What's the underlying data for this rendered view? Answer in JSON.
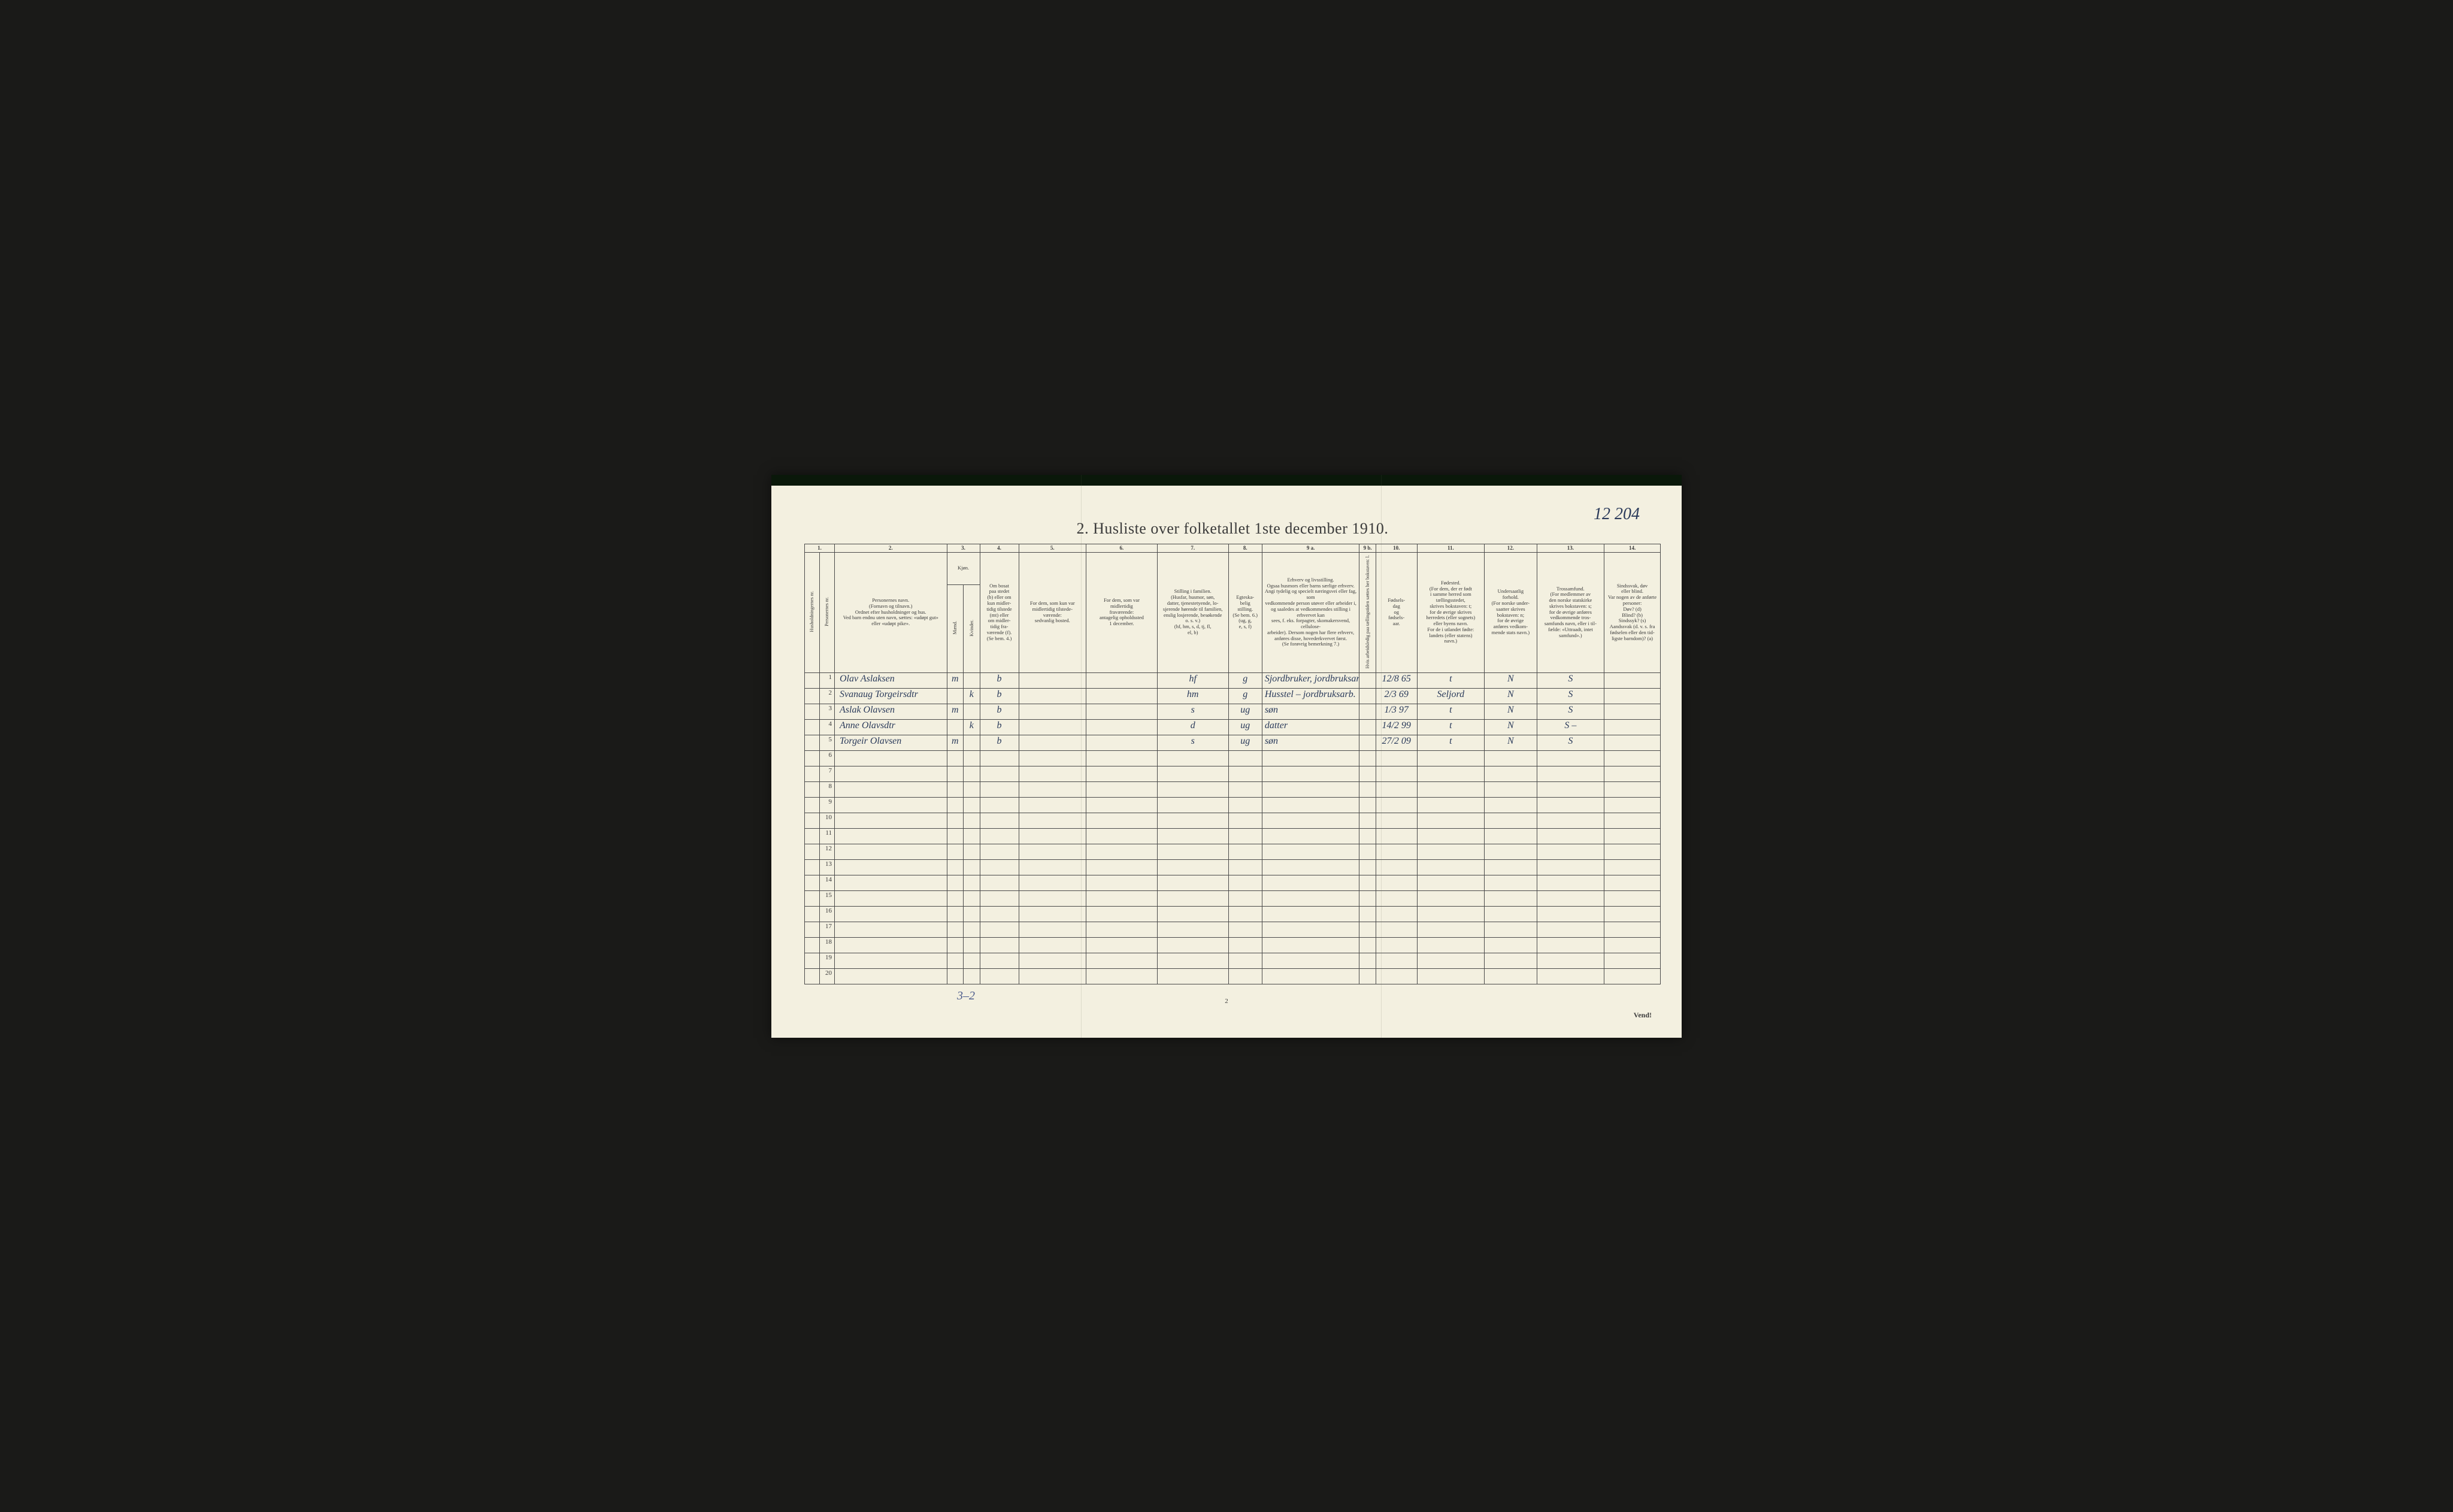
{
  "page": {
    "title": "2.  Husliste over folketallet 1ste december 1910.",
    "corner_note": "12 204",
    "bottom_note": "3–2",
    "page_number": "2",
    "vend": "Vend!",
    "background_color": "#f3f0e0",
    "ink_color": "#3a3a3a",
    "handwriting_color": "#2a3a5a",
    "border_color": "#4a4a4a"
  },
  "columns": {
    "widths_pct": [
      2.0,
      2.0,
      15.0,
      2.2,
      2.2,
      5.2,
      9.0,
      9.5,
      9.5,
      4.5,
      13.0,
      2.2,
      5.5,
      9.0,
      7.0,
      9.0,
      7.5
    ],
    "numbers": [
      "1.",
      "2.",
      "3.",
      "4.",
      "5.",
      "6.",
      "7.",
      "8.",
      "9 a.",
      "9 b.",
      "10.",
      "11.",
      "12.",
      "13.",
      "14."
    ],
    "header1_rot": "Husholdningernes nr.",
    "header1b_rot": "Personernes nr.",
    "header2": "Personernes navn.\n(Fornavn og tilnavn.)\nOrdnet efter husholdninger og hus.\nVed barn endnu uten navn, sættes: «udøpt gut»\neller «udøpt pike».",
    "header3": "Kjøn.",
    "header3a_rot": "Mænd.",
    "header3b_rot": "Kvinder.",
    "header4": "Om bosat\npaa stedet\n(b) eller om\nkun midler-\ntidig tilstede\n(mt) eller\nom midler-\ntidig fra-\nværende (f).\n(Se bem. 4.)",
    "header5": "For dem, som kun var\nmidlertidig tilstede-\nværende:\nsedvanlig bosted.",
    "header6": "For dem, som var\nmidlertidig\nfraværende:\nantagelig opholdssted\n1 december.",
    "header7": "Stilling i familien.\n(Husfar, husmor, søn,\ndatter, tjenestetyende, lo-\nsjerende hørende til familien,\nenslig losjerende, besøkende\no. s. v.)\n(hf, hm, s, d, tj, fl,\nel, b)",
    "header8": "Egteska-\nbelig\nstilling.\n(Se bem. 6.)\n(ug, g,\ne, s, f)",
    "header9a": "Erhverv og livsstilling.\nOgsaa husmors eller barns særlige erhverv.\nAngi tydelig og specielt næringsvei eller fag, som\nvedkommende person utøver eller arbeider i,\nog saaledes at vedkommendes stilling i erhvervet kan\nsees, f. eks. forpagter, skomakersvend, cellulose-\narbeider). Dersom nogen har flere erhverv,\nanføres disse, hovederkvervet først.\n(Se forøvrig bemerkning 7.)",
    "header9b_rot": "Hvis arbeidsledig\npaa tællingstiden sættes\nher bokstaven: l.",
    "header10": "Fødsels-\ndag\nog\nfødsels-\naar.",
    "header11": "Fødested.\n(For dem, der er født\ni samme herred som\ntællingsstedet,\nskrives bokstaven: t;\nfor de øvrige skrives\nherredets (eller sognets)\neller byens navn.\nFor de i utlandet fødte:\nlandets (eller statens)\nnavn.)",
    "header12": "Undersaatlig\nforhold.\n(For norske under-\nsaatter skrives\nbokstaven: n;\nfor de øvrige\nanføres vedkom-\nmende stats navn.)",
    "header13": "Trossamfund.\n(For medlemmer av\nden norske statskirke\nskrives bokstaven: s;\nfor de øvrige anføres\nvedkommende tros-\nsamfunds navn, eller i til-\nfælde: «Uttraadt, intet\nsamfund».)",
    "header14": "Sindssvak, døv\neller blind.\nVar nogen av de anførte\npersoner:\nDøv?       (d)\nBlind?     (b)\nSindssyk?  (s)\nAandssvak (d. v. s. fra\nfødselen eller den tid-\nligste barndom)? (a)"
  },
  "rows": [
    {
      "num": "1",
      "name": "Olav Aslaksen",
      "m": "m",
      "k": "",
      "b": "b",
      "c5": "",
      "c6": "",
      "c7": "hf",
      "c8": "g",
      "c9a": "Sjordbruker, jordbruksarbeider",
      "c9b": "",
      "c10": "12/8 65",
      "c11": "t",
      "c12": "N",
      "c13": "S",
      "c14": ""
    },
    {
      "num": "2",
      "name": "Svanaug Torgeirsdtr",
      "m": "",
      "k": "k",
      "b": "b",
      "c5": "",
      "c6": "",
      "c7": "hm",
      "c8": "g",
      "c9a": "Husstel – jordbruksarb.",
      "c9b": "",
      "c10": "2/3 69",
      "c11": "Seljord",
      "c12": "N",
      "c13": "S",
      "c14": ""
    },
    {
      "num": "3",
      "name": "Aslak Olavsen",
      "m": "m",
      "k": "",
      "b": "b",
      "c5": "",
      "c6": "",
      "c7": "s",
      "c8": "ug",
      "c9a": "søn",
      "c9b": "",
      "c10": "1/3 97",
      "c11": "t",
      "c12": "N",
      "c13": "S",
      "c14": ""
    },
    {
      "num": "4",
      "name": "Anne Olavsdtr",
      "m": "",
      "k": "k",
      "b": "b",
      "c5": "",
      "c6": "",
      "c7": "d",
      "c8": "ug",
      "c9a": "datter",
      "c9b": "",
      "c10": "14/2 99",
      "c11": "t",
      "c12": "N",
      "c13": "S –",
      "c14": ""
    },
    {
      "num": "5",
      "name": "Torgeir Olavsen",
      "m": "m",
      "k": "",
      "b": "b",
      "c5": "",
      "c6": "",
      "c7": "s",
      "c8": "ug",
      "c9a": "søn",
      "c9b": "",
      "c10": "27/2 09",
      "c11": "t",
      "c12": "N",
      "c13": "S",
      "c14": ""
    }
  ],
  "empty_rows": [
    "6",
    "7",
    "8",
    "9",
    "10",
    "11",
    "12",
    "13",
    "14",
    "15",
    "16",
    "17",
    "18",
    "19",
    "20"
  ],
  "fold_lines_pct": [
    34,
    67
  ]
}
